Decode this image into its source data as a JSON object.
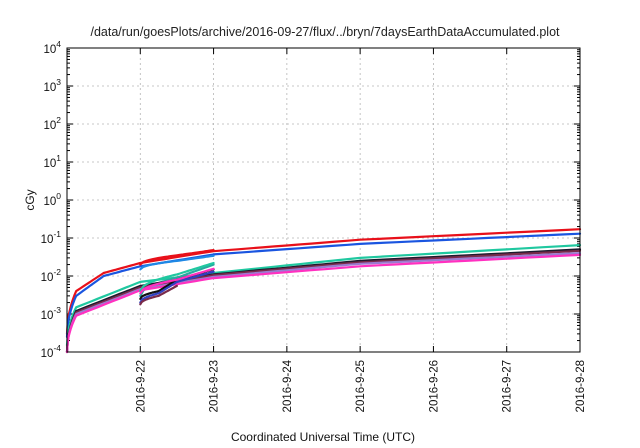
{
  "chart_data": {
    "type": "line",
    "title": "/data/run/goesPlots/archive/2016-09-27/flux/../bryn/7daysEarthDataAccumulated.plot",
    "xlabel": "Coordinated Universal Time (UTC)",
    "ylabel": "cGy",
    "y_scale": "log",
    "ylim": [
      0.0001,
      10000
    ],
    "xlim": [
      "2016-09-21 00:00",
      "2016-09-28 00:00"
    ],
    "x_ticks": [
      "2016-9-22",
      "2016-9-23",
      "2016-9-24",
      "2016-9-25",
      "2016-9-26",
      "2016-9-27",
      "2016-9-28"
    ],
    "y_ticks": [
      {
        "base": "10",
        "exp": "-4"
      },
      {
        "base": "10",
        "exp": "-3"
      },
      {
        "base": "10",
        "exp": "-2"
      },
      {
        "base": "10",
        "exp": "-1"
      },
      {
        "base": "10",
        "exp": "0"
      },
      {
        "base": "10",
        "exp": "1"
      },
      {
        "base": "10",
        "exp": "2"
      },
      {
        "base": "10",
        "exp": "3"
      },
      {
        "base": "10",
        "exp": "4"
      }
    ],
    "grid": true,
    "legend": "none",
    "series": [
      {
        "color": "#e8101a",
        "x": [
          "2016-09-21 00:00",
          "2016-09-21 03:00",
          "2016-09-21 12:00",
          "2016-09-22 00:00",
          "2016-09-23 00:00",
          "2016-09-25 00:00",
          "2016-09-28 00:00"
        ],
        "y": [
          0.0003,
          0.004,
          0.012,
          0.022,
          0.045,
          0.09,
          0.17
        ]
      },
      {
        "color": "#1a55e0",
        "x": [
          "2016-09-21 00:00",
          "2016-09-21 03:00",
          "2016-09-21 12:00",
          "2016-09-22 00:00",
          "2016-09-23 00:00",
          "2016-09-25 00:00",
          "2016-09-28 00:00"
        ],
        "y": [
          0.00025,
          0.003,
          0.01,
          0.018,
          0.037,
          0.07,
          0.13
        ]
      },
      {
        "color": "#1e88e5",
        "x": [
          "2016-09-22 00:00",
          "2016-09-22 12:00",
          "2016-09-23 00:00"
        ],
        "y": [
          0.015,
          0.025,
          0.034
        ]
      },
      {
        "color": "#20c8a0",
        "x": [
          "2016-09-21 00:00",
          "2016-09-21 03:00",
          "2016-09-22 00:00",
          "2016-09-23 00:00",
          "2016-09-25 00:00",
          "2016-09-28 00:00"
        ],
        "y": [
          0.00015,
          0.0015,
          0.007,
          0.012,
          0.03,
          0.065
        ]
      },
      {
        "color": "#2aa8a0",
        "x": [
          "2016-09-22 00:00",
          "2016-09-22 12:00",
          "2016-09-23 00:00"
        ],
        "y": [
          0.003,
          0.009,
          0.02
        ]
      },
      {
        "color": "#1b1b2e",
        "x": [
          "2016-09-21 00:00",
          "2016-09-21 03:00",
          "2016-09-22 00:00",
          "2016-09-23 00:00",
          "2016-09-25 00:00",
          "2016-09-28 00:00"
        ],
        "y": [
          0.0001,
          0.0012,
          0.0055,
          0.011,
          0.025,
          0.05
        ]
      },
      {
        "color": "#7a2a4a",
        "x": [
          "2016-09-21 00:00",
          "2016-09-21 03:00",
          "2016-09-22 00:00",
          "2016-09-23 00:00",
          "2016-09-25 00:00",
          "2016-09-28 00:00"
        ],
        "y": [
          0.0001,
          0.0011,
          0.005,
          0.0105,
          0.023,
          0.046
        ]
      },
      {
        "color": "#9a7bd0",
        "x": [
          "2016-09-21 00:00",
          "2016-09-21 03:00",
          "2016-09-22 00:00",
          "2016-09-23 00:00",
          "2016-09-25 00:00",
          "2016-09-28 00:00"
        ],
        "y": [
          0.0001,
          0.001,
          0.0045,
          0.0095,
          0.021,
          0.04
        ]
      },
      {
        "color": "#ff30c0",
        "x": [
          "2016-09-21 00:00",
          "2016-09-21 03:00",
          "2016-09-22 00:00",
          "2016-09-23 00:00",
          "2016-09-25 00:00",
          "2016-09-28 00:00"
        ],
        "y": [
          0.0001,
          0.0009,
          0.0042,
          0.0088,
          0.018,
          0.036
        ]
      },
      {
        "color": "#e8101a",
        "x": [
          "2016-09-22 00:00",
          "2016-09-22 12:00",
          "2016-09-23 00:00"
        ],
        "y": [
          0.02,
          0.035,
          0.048
        ]
      },
      {
        "color": "#101010",
        "x": [
          "2016-09-22 00:00",
          "2016-09-22 06:00",
          "2016-09-22 12:00",
          "2016-09-23 00:00"
        ],
        "y": [
          0.0025,
          0.004,
          0.008,
          0.015
        ]
      },
      {
        "color": "#3040c0",
        "x": [
          "2016-09-22 00:00",
          "2016-09-22 06:00",
          "2016-09-22 12:00",
          "2016-09-23 00:00"
        ],
        "y": [
          0.002,
          0.0035,
          0.007,
          0.013
        ]
      },
      {
        "color": "#7a2a4a",
        "x": [
          "2016-09-22 00:00",
          "2016-09-22 06:00",
          "2016-09-22 12:00"
        ],
        "y": [
          0.0018,
          0.003,
          0.0055
        ]
      },
      {
        "color": "#20c8a0",
        "x": [
          "2016-09-22 00:00",
          "2016-09-22 12:00",
          "2016-09-23 00:00"
        ],
        "y": [
          0.004,
          0.011,
          0.022
        ]
      },
      {
        "color": "#ff30c0",
        "x": [
          "2016-09-22 00:00",
          "2016-09-22 12:00",
          "2016-09-23 00:00"
        ],
        "y": [
          0.0035,
          0.008,
          0.0155
        ]
      }
    ]
  }
}
